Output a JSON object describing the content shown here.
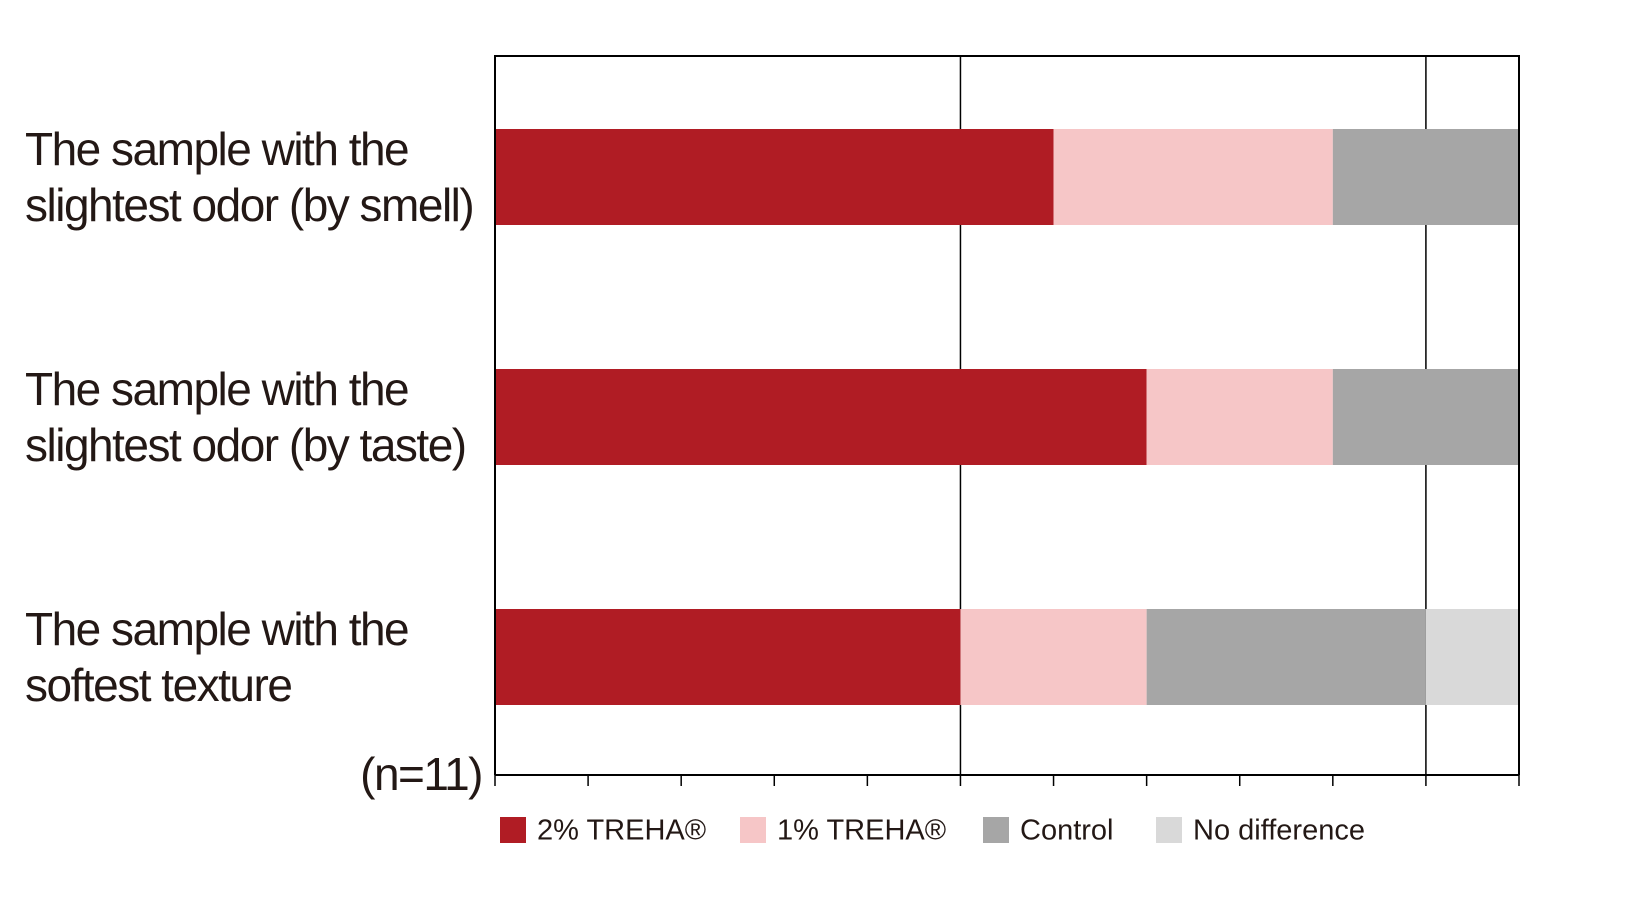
{
  "chart_data": {
    "type": "stacked-barh",
    "categories": [
      [
        "The sample with the",
        "slightest odor (by smell)"
      ],
      [
        "The sample with the",
        "slightest odor (by taste)"
      ],
      [
        "The sample with the",
        "softest texture"
      ]
    ],
    "series": [
      {
        "name": "2% TREHA®",
        "color": "#b01c24",
        "values": [
          6,
          7,
          5
        ]
      },
      {
        "name": "1% TREHA®",
        "color": "#f6c6c7",
        "values": [
          3,
          2,
          2
        ]
      },
      {
        "name": "Control",
        "color": "#a6a6a6",
        "values": [
          2,
          2,
          3
        ]
      },
      {
        "name": "No difference",
        "color": "#d9d9d9",
        "values": [
          0,
          0,
          1
        ]
      }
    ],
    "note": "(n=11)",
    "xlim": [
      0,
      11
    ],
    "xticks": [
      0,
      1,
      2,
      3,
      4,
      5,
      6,
      7,
      8,
      9,
      10,
      11
    ],
    "xgrid": [
      5,
      10
    ]
  }
}
